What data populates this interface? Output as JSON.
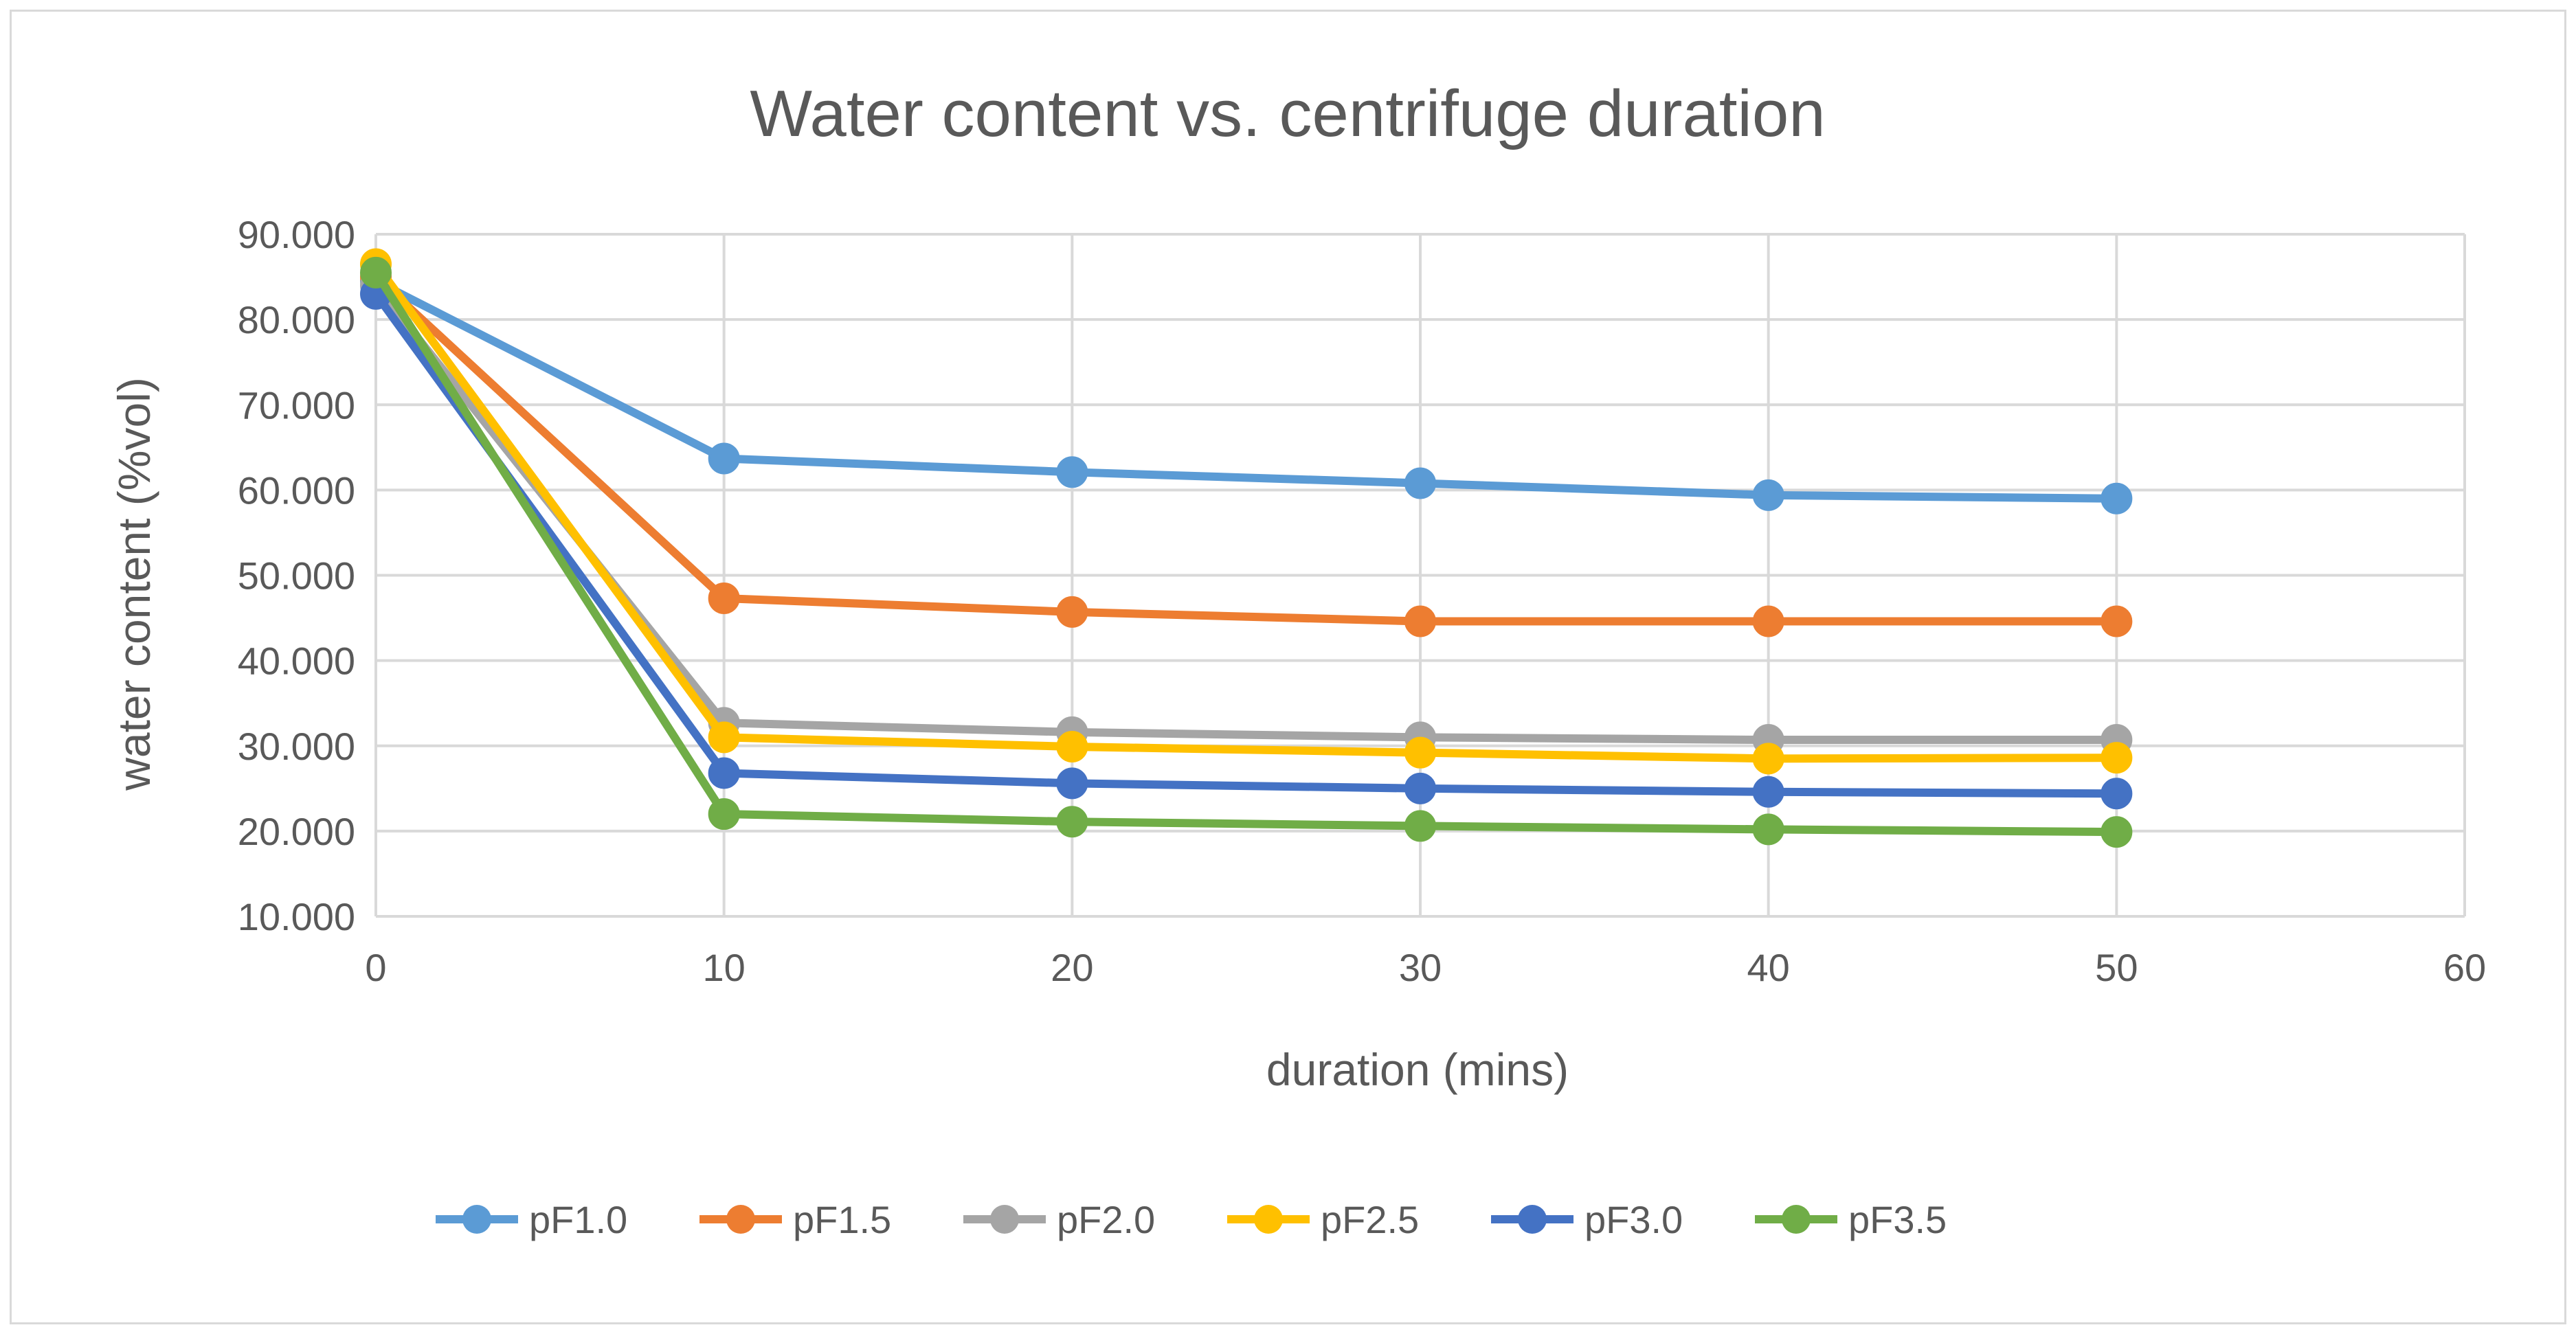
{
  "chart_data": {
    "type": "line",
    "title": "Water content vs. centrifuge duration",
    "xlabel": "duration (mins)",
    "ylabel": "water content (%vol)",
    "xlim": [
      0,
      60
    ],
    "ylim": [
      10,
      90
    ],
    "x_ticks": [
      0,
      10,
      20,
      30,
      40,
      50,
      60
    ],
    "x_tick_labels": [
      "0",
      "10",
      "20",
      "30",
      "40",
      "50",
      "60"
    ],
    "y_ticks": [
      10,
      20,
      30,
      40,
      50,
      60,
      70,
      80,
      90
    ],
    "y_tick_labels": [
      "10.000",
      "20.000",
      "30.000",
      "40.000",
      "50.000",
      "60.000",
      "70.000",
      "80.000",
      "90.000"
    ],
    "grid": true,
    "legend_position": "bottom",
    "x": [
      0,
      10,
      20,
      30,
      40,
      50
    ],
    "series": [
      {
        "name": "pF1.0",
        "color": "#5B9BD5",
        "values": [
          84.5,
          63.7,
          62.1,
          60.8,
          59.4,
          59.0
        ]
      },
      {
        "name": "pF1.5",
        "color": "#ED7D31",
        "values": [
          85.0,
          47.3,
          45.7,
          44.6,
          44.6,
          44.6
        ]
      },
      {
        "name": "pF2.0",
        "color": "#A5A5A5",
        "values": [
          84.0,
          32.7,
          31.6,
          31.0,
          30.7,
          30.7
        ]
      },
      {
        "name": "pF2.5",
        "color": "#FFC000",
        "values": [
          86.5,
          31.0,
          29.9,
          29.2,
          28.5,
          28.6
        ]
      },
      {
        "name": "pF3.0",
        "color": "#4472C4",
        "values": [
          83.0,
          26.8,
          25.6,
          25.0,
          24.6,
          24.4
        ]
      },
      {
        "name": "pF3.5",
        "color": "#70AD47",
        "values": [
          85.5,
          22.0,
          21.1,
          20.6,
          20.2,
          19.9
        ]
      }
    ]
  }
}
